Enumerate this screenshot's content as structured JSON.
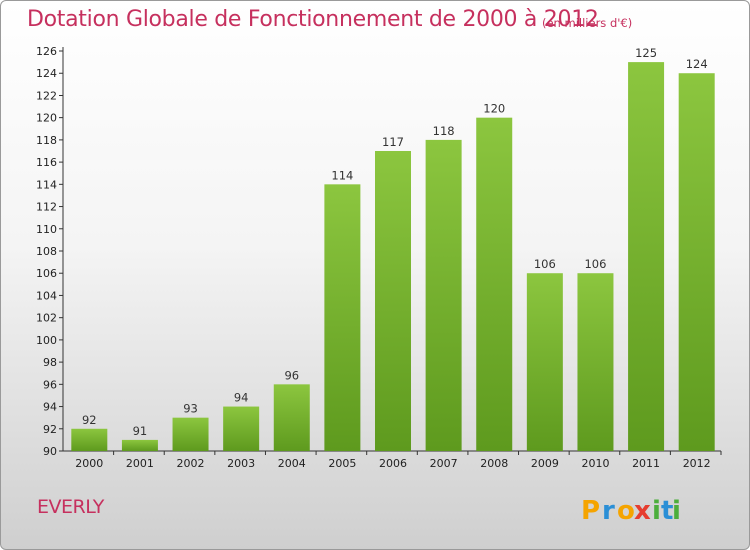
{
  "chart_data": {
    "type": "bar",
    "title": "Dotation Globale de Fonctionnement de 2000 à 2012",
    "subtitle": "(en milliers d'€)",
    "categories": [
      "2000",
      "2001",
      "2002",
      "2003",
      "2004",
      "2005",
      "2006",
      "2007",
      "2008",
      "2009",
      "2010",
      "2011",
      "2012"
    ],
    "values": [
      92,
      91,
      93,
      94,
      96,
      114,
      117,
      118,
      120,
      106,
      106,
      125,
      124
    ],
    "ylim": [
      90,
      126
    ],
    "yticks": [
      90,
      92,
      94,
      96,
      98,
      100,
      102,
      104,
      106,
      108,
      110,
      112,
      114,
      116,
      118,
      120,
      122,
      124,
      126
    ],
    "grid": false,
    "bar_color": "#8cc63f",
    "bar_color_dark": "#5e9a1e"
  },
  "commune": "EVERLY",
  "logo": {
    "letters": [
      "P",
      "r",
      "o",
      "x",
      "i",
      "t",
      "i"
    ],
    "colors": [
      "#f5a400",
      "#2b8fd6",
      "#f5a400",
      "#e63d2f",
      "#4cae3c",
      "#2b8fd6",
      "#4cae3c"
    ]
  },
  "title_color": "#c6305e"
}
